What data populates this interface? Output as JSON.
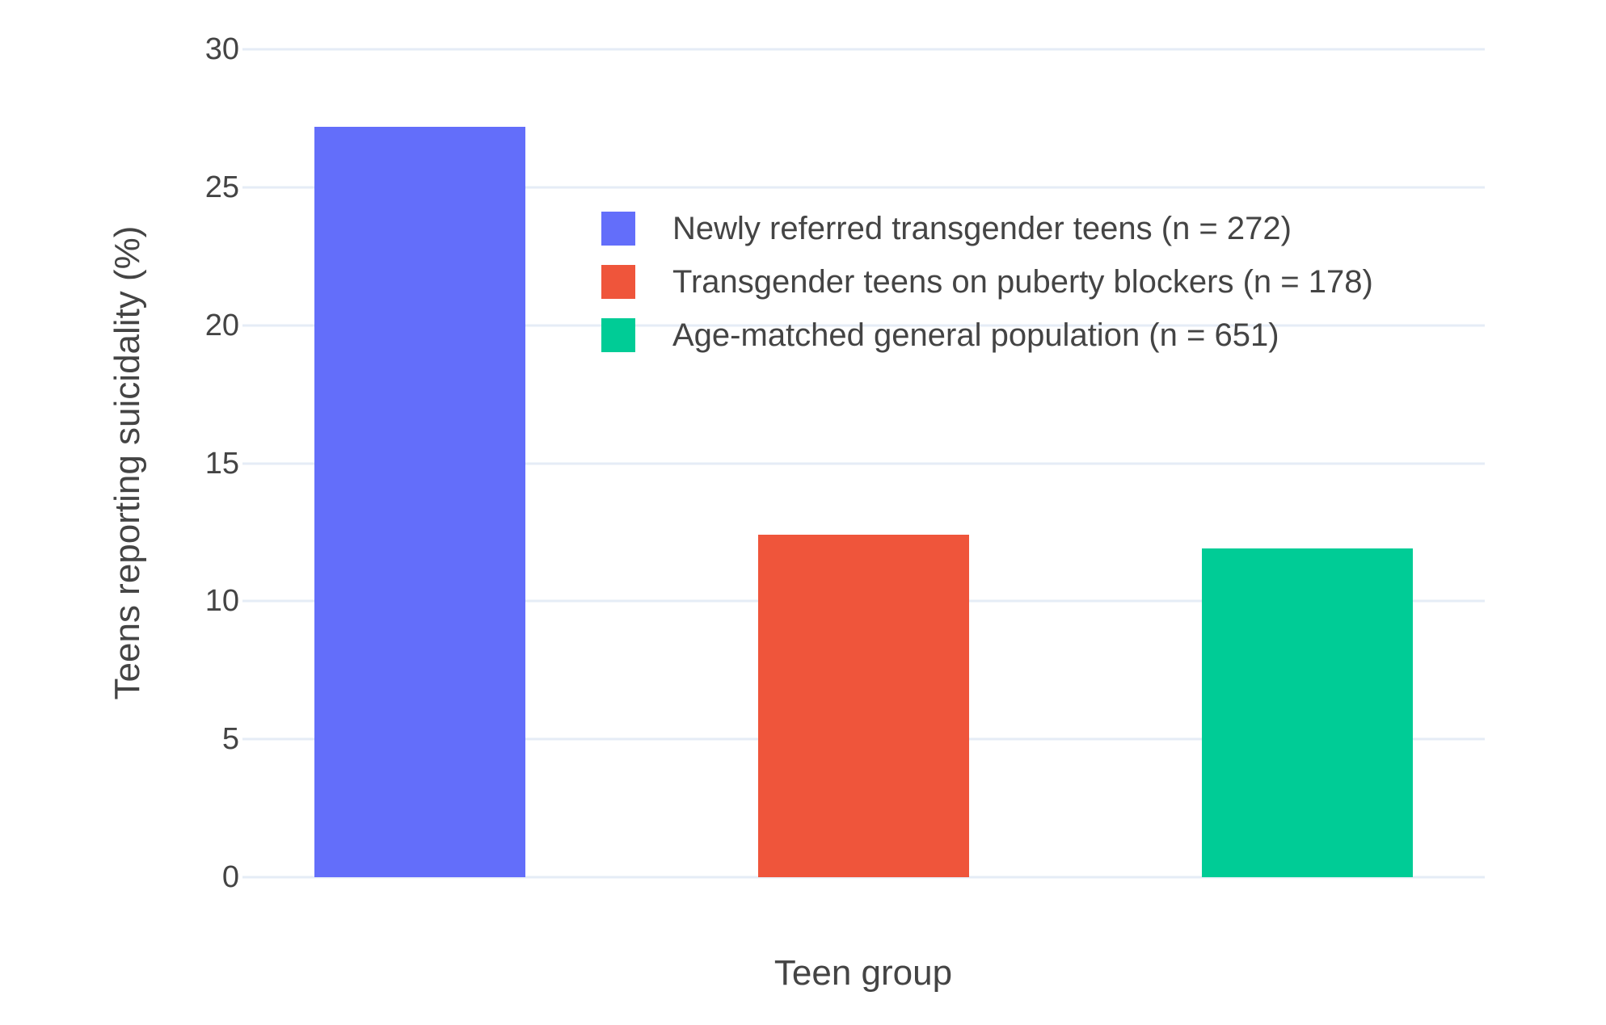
{
  "chart_data": {
    "type": "bar",
    "title": "",
    "xlabel": "Teen group",
    "ylabel": "Teens reporting suicidality (%)",
    "ylim": [
      0,
      30
    ],
    "yticks": [
      0,
      5,
      10,
      15,
      20,
      25,
      30
    ],
    "grid": true,
    "x_tick_labels": [],
    "legend_position": "inside top-center",
    "series": [
      {
        "name": "Newly referred transgender teens (n = 272)",
        "n": 272,
        "value": 27.2,
        "color": "#636EFA"
      },
      {
        "name": "Transgender teens on puberty blockers (n = 178)",
        "n": 178,
        "value": 12.4,
        "color": "#EF553B"
      },
      {
        "name": "Age-matched general population (n = 651)",
        "n": 651,
        "value": 11.9,
        "color": "#00CC96"
      }
    ]
  },
  "colors": {
    "background": "#FFFFFF",
    "gridline": "#E5ECF6",
    "text": "#444444"
  }
}
